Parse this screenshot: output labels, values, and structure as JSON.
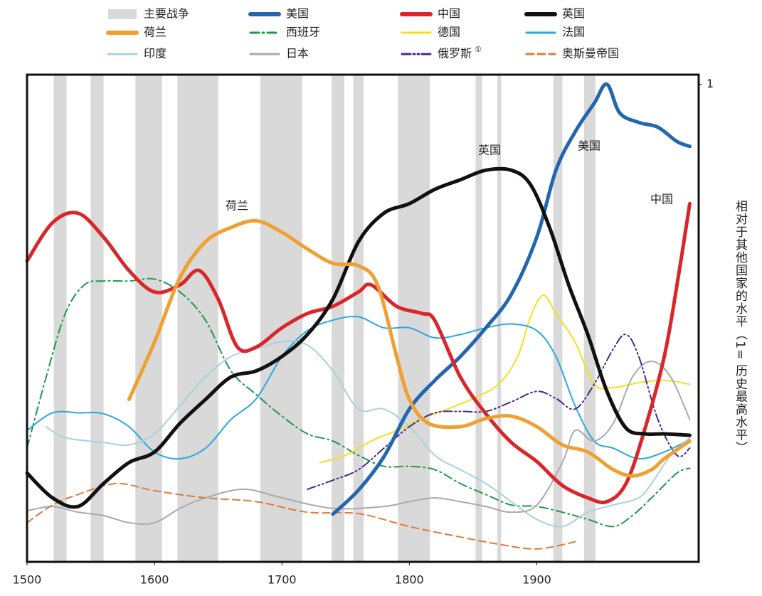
{
  "chart_data": {
    "type": "line",
    "y_label": "相对于其他国家的水平（1= 历史最高水平）",
    "xlim": [
      1500,
      2027
    ],
    "ylim": [
      0,
      1.02
    ],
    "xticks": [
      1500,
      1600,
      1700,
      1800,
      1900
    ],
    "yticks": [
      1
    ],
    "wars": {
      "name": "主要战争",
      "color": "#d9d9d9",
      "ranges": [
        [
          1521,
          1531
        ],
        [
          1550,
          1560
        ],
        [
          1585,
          1606
        ],
        [
          1618,
          1650
        ],
        [
          1683,
          1716
        ],
        [
          1739,
          1749
        ],
        [
          1756,
          1764
        ],
        [
          1791,
          1816
        ],
        [
          1852,
          1857
        ],
        [
          1869,
          1872
        ],
        [
          1913,
          1920
        ],
        [
          1937,
          1946
        ]
      ]
    },
    "series": [
      {
        "name": "美国",
        "color": "#2266b0",
        "width": 5,
        "dash": "solid",
        "x": [
          1740,
          1760,
          1780,
          1800,
          1820,
          1840,
          1860,
          1880,
          1900,
          1915,
          1930,
          1945,
          1955,
          1965,
          1980,
          1995,
          2010,
          2020
        ],
        "values": [
          0.1,
          0.15,
          0.22,
          0.32,
          0.38,
          0.43,
          0.49,
          0.56,
          0.68,
          0.82,
          0.9,
          0.96,
          1.0,
          0.94,
          0.92,
          0.91,
          0.88,
          0.87
        ]
      },
      {
        "name": "中国",
        "color": "#d9262a",
        "width": 5,
        "dash": "solid",
        "x": [
          1500,
          1520,
          1540,
          1560,
          1580,
          1600,
          1620,
          1635,
          1650,
          1665,
          1680,
          1700,
          1720,
          1740,
          1760,
          1770,
          1790,
          1810,
          1820,
          1840,
          1860,
          1880,
          1900,
          1920,
          1940,
          1955,
          1970,
          1985,
          2000,
          2010,
          2020
        ],
        "values": [
          0.63,
          0.71,
          0.73,
          0.68,
          0.61,
          0.565,
          0.58,
          0.61,
          0.55,
          0.45,
          0.45,
          0.49,
          0.52,
          0.535,
          0.565,
          0.58,
          0.535,
          0.52,
          0.505,
          0.387,
          0.31,
          0.25,
          0.21,
          0.16,
          0.134,
          0.126,
          0.164,
          0.28,
          0.43,
          0.58,
          0.75
        ]
      },
      {
        "name": "英国",
        "color": "#111111",
        "width": 5,
        "dash": "solid",
        "x": [
          1500,
          1520,
          1540,
          1560,
          1580,
          1600,
          1620,
          1640,
          1660,
          1680,
          1700,
          1720,
          1740,
          1760,
          1780,
          1800,
          1820,
          1840,
          1860,
          1880,
          1895,
          1910,
          1925,
          1940,
          1955,
          1970,
          1985,
          2000,
          2020
        ],
        "values": [
          0.186,
          0.134,
          0.116,
          0.164,
          0.208,
          0.23,
          0.29,
          0.34,
          0.387,
          0.4,
          0.43,
          0.476,
          0.55,
          0.67,
          0.73,
          0.75,
          0.78,
          0.8,
          0.82,
          0.82,
          0.79,
          0.7,
          0.58,
          0.476,
          0.357,
          0.28,
          0.268,
          0.268,
          0.265
        ]
      },
      {
        "name": "荷兰",
        "color": "#f0a030",
        "width": 5,
        "dash": "solid",
        "x": [
          1580,
          1600,
          1620,
          1640,
          1660,
          1680,
          1700,
          1720,
          1740,
          1760,
          1775,
          1790,
          1800,
          1815,
          1840,
          1860,
          1880,
          1900,
          1920,
          1940,
          1960,
          1975,
          1990,
          2000,
          2020
        ],
        "values": [
          0.34,
          0.46,
          0.595,
          0.67,
          0.7,
          0.714,
          0.69,
          0.655,
          0.625,
          0.62,
          0.58,
          0.43,
          0.34,
          0.29,
          0.283,
          0.3,
          0.305,
          0.283,
          0.245,
          0.23,
          0.193,
          0.18,
          0.193,
          0.216,
          0.253
        ]
      },
      {
        "name": "西班牙",
        "color": "#1a9a4a",
        "width": 2,
        "dash": "dashdot",
        "x": [
          1500,
          1515,
          1530,
          1545,
          1560,
          1580,
          1600,
          1620,
          1640,
          1660,
          1680,
          1700,
          1720,
          1740,
          1760,
          1780,
          1800,
          1820,
          1840,
          1860,
          1880,
          1900,
          1920,
          1940,
          1960,
          1975,
          1990,
          2010,
          2020
        ],
        "values": [
          0.238,
          0.387,
          0.52,
          0.58,
          0.588,
          0.588,
          0.592,
          0.565,
          0.506,
          0.4,
          0.35,
          0.305,
          0.268,
          0.253,
          0.223,
          0.2,
          0.2,
          0.193,
          0.164,
          0.141,
          0.119,
          0.116,
          0.104,
          0.089,
          0.074,
          0.097,
          0.134,
          0.186,
          0.196
        ]
      },
      {
        "name": "德国",
        "color": "#f2e020",
        "width": 2,
        "dash": "solid",
        "x": [
          1730,
          1750,
          1770,
          1790,
          1810,
          1830,
          1850,
          1870,
          1885,
          1895,
          1905,
          1915,
          1930,
          1945,
          1960,
          1980,
          2000,
          2020
        ],
        "values": [
          0.208,
          0.223,
          0.253,
          0.275,
          0.3,
          0.32,
          0.342,
          0.372,
          0.43,
          0.513,
          0.558,
          0.52,
          0.46,
          0.372,
          0.365,
          0.375,
          0.38,
          0.372
        ]
      },
      {
        "name": "法国",
        "color": "#2aa8e0",
        "width": 2,
        "dash": "solid",
        "x": [
          1500,
          1520,
          1540,
          1560,
          1580,
          1600,
          1620,
          1640,
          1660,
          1680,
          1700,
          1720,
          1740,
          1760,
          1780,
          1800,
          1820,
          1840,
          1860,
          1880,
          1900,
          1915,
          1930,
          1945,
          1960,
          1980,
          2000,
          2020
        ],
        "values": [
          0.275,
          0.312,
          0.312,
          0.31,
          0.283,
          0.23,
          0.216,
          0.238,
          0.298,
          0.342,
          0.43,
          0.484,
          0.506,
          0.513,
          0.49,
          0.49,
          0.469,
          0.476,
          0.49,
          0.498,
          0.484,
          0.43,
          0.327,
          0.253,
          0.238,
          0.216,
          0.23,
          0.256
        ]
      },
      {
        "name": "印度",
        "color": "#a8d2df",
        "width": 2,
        "dash": "solid",
        "x": [
          1515,
          1530,
          1560,
          1580,
          1600,
          1620,
          1640,
          1660,
          1680,
          1700,
          1720,
          1740,
          1760,
          1780,
          1800,
          1820,
          1840,
          1860,
          1880,
          1900,
          1920,
          1940,
          1960,
          1980,
          1990,
          2005,
          2020
        ],
        "values": [
          0.283,
          0.26,
          0.25,
          0.245,
          0.268,
          0.327,
          0.387,
          0.43,
          0.446,
          0.461,
          0.454,
          0.4,
          0.32,
          0.32,
          0.283,
          0.223,
          0.193,
          0.164,
          0.126,
          0.089,
          0.074,
          0.104,
          0.119,
          0.134,
          0.164,
          0.223,
          0.26
        ]
      },
      {
        "name": "日本",
        "color": "#aaaaaa",
        "width": 2,
        "dash": "solid",
        "x": [
          1500,
          1520,
          1540,
          1560,
          1580,
          1600,
          1620,
          1640,
          1670,
          1700,
          1740,
          1780,
          1800,
          1820,
          1840,
          1860,
          1880,
          1900,
          1920,
          1930,
          1945,
          1960,
          1975,
          1990,
          2005,
          2020
        ],
        "values": [
          0.107,
          0.116,
          0.104,
          0.097,
          0.082,
          0.082,
          0.112,
          0.134,
          0.152,
          0.134,
          0.112,
          0.116,
          0.126,
          0.134,
          0.126,
          0.116,
          0.104,
          0.119,
          0.208,
          0.275,
          0.253,
          0.29,
          0.387,
          0.42,
          0.387,
          0.298
        ]
      },
      {
        "name": "俄罗斯",
        "note": "①",
        "color": "#4a2a8a",
        "width": 2,
        "dash": "dashdotdot",
        "x": [
          1720,
          1740,
          1760,
          1780,
          1800,
          1820,
          1840,
          1860,
          1880,
          1900,
          1915,
          1930,
          1945,
          1960,
          1970,
          1980,
          1995,
          2010,
          2020
        ],
        "values": [
          0.152,
          0.171,
          0.193,
          0.238,
          0.283,
          0.312,
          0.315,
          0.315,
          0.335,
          0.357,
          0.342,
          0.32,
          0.372,
          0.446,
          0.476,
          0.43,
          0.298,
          0.223,
          0.238
        ]
      },
      {
        "name": "奥斯曼帝国",
        "color": "#e07a3a",
        "width": 2,
        "dash": "dash",
        "x": [
          1500,
          1520,
          1540,
          1570,
          1600,
          1640,
          1680,
          1720,
          1760,
          1800,
          1840,
          1870,
          1900,
          1930
        ],
        "values": [
          0.082,
          0.119,
          0.141,
          0.164,
          0.149,
          0.134,
          0.126,
          0.104,
          0.101,
          0.074,
          0.052,
          0.037,
          0.027,
          0.042
        ]
      }
    ],
    "annotations": [
      "荷兰",
      "英国",
      "美国",
      "中国"
    ]
  }
}
